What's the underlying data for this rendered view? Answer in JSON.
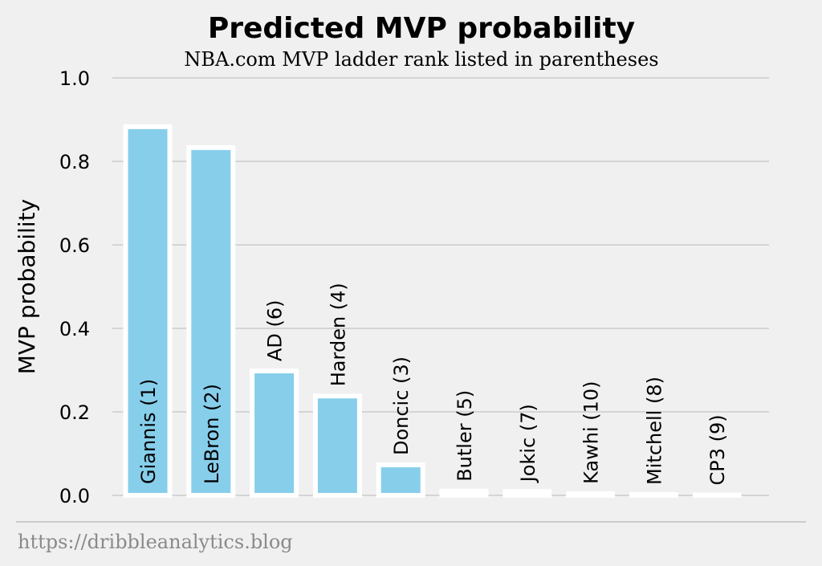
{
  "chart_data": {
    "type": "bar",
    "title": "Predicted MVP probability",
    "subtitle": "NBA.com MVP ladder rank listed in parentheses",
    "ylabel": "MVP probability",
    "xlabel": "",
    "ylim": [
      0,
      1.0
    ],
    "yticks": [
      "0.0",
      "0.2",
      "0.4",
      "0.6",
      "0.8",
      "1.0"
    ],
    "grid": true,
    "categories": [
      "Giannis (1)",
      "LeBron (2)",
      "AD (6)",
      "Harden (4)",
      "Doncic (3)",
      "Butler (5)",
      "Jokic (7)",
      "Kawhi (10)",
      "Mitchell (8)",
      "CP3 (9)"
    ],
    "values": [
      0.883,
      0.833,
      0.298,
      0.238,
      0.073,
      0.01,
      0.009,
      0.004,
      0.002,
      0.001
    ],
    "bar_color": "#87ceeb",
    "edge_color": "#ffffff",
    "background": "#f0f0f0"
  },
  "footer": {
    "source": "https://dribbleanalytics.blog"
  }
}
